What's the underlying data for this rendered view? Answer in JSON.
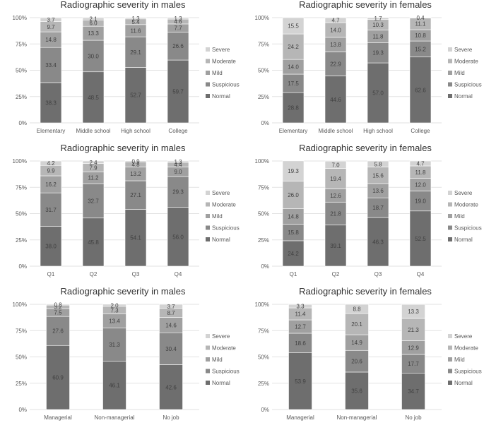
{
  "legend_labels": [
    "Severe",
    "Moderate",
    "Mild",
    "Suspicious",
    "Normal"
  ],
  "colors": {
    "Normal": "#6e6e6e",
    "Suspicious": "#898989",
    "Mild": "#a0a0a0",
    "Moderate": "#b6b6b6",
    "Severe": "#d3d3d3",
    "gridline": "#e2e2e2",
    "axis_text": "#595959",
    "title_text": "#333333",
    "value_text": "#404040"
  },
  "chart_data": [
    {
      "type": "bar",
      "stacked": true,
      "title": "Radiographic severity in males",
      "categories": [
        "Elementary",
        "Middle school",
        "High school",
        "College"
      ],
      "y_ticks": [
        "0%",
        "25%",
        "50%",
        "75%",
        "100%"
      ],
      "ylim": [
        0,
        100
      ],
      "series": [
        {
          "name": "Normal",
          "values": [
            38.3,
            48.5,
            52.7,
            59.7
          ]
        },
        {
          "name": "Suspicious",
          "values": [
            33.4,
            30.0,
            29.1,
            26.6
          ]
        },
        {
          "name": "Mild",
          "values": [
            14.8,
            13.3,
            11.6,
            7.7
          ]
        },
        {
          "name": "Moderate",
          "values": [
            9.7,
            6.0,
            5.4,
            4.6
          ]
        },
        {
          "name": "Severe",
          "values": [
            3.7,
            2.1,
            1.3,
            1.3
          ]
        }
      ],
      "value_labels": [
        [
          "38.3",
          "33.4",
          "14.8",
          "9.7",
          "3.7"
        ],
        [
          "48.5",
          "30.0",
          "13.3",
          "6.0",
          "2.1"
        ],
        [
          "52.7",
          "29.1",
          "11.6",
          "5.4",
          "1.3"
        ],
        [
          "59.7",
          "26.6",
          "7.7",
          "4.6",
          "1.3"
        ]
      ]
    },
    {
      "type": "bar",
      "stacked": true,
      "title": "Radiographic severity in females",
      "categories": [
        "Elementary",
        "Middle school",
        "High school",
        "College"
      ],
      "y_ticks": [
        "0%",
        "25%",
        "50%",
        "75%",
        "100%"
      ],
      "ylim": [
        0,
        100
      ],
      "series": [
        {
          "name": "Normal",
          "values": [
            28.8,
            44.6,
            57.0,
            62.6
          ]
        },
        {
          "name": "Suspicious",
          "values": [
            17.5,
            22.9,
            19.3,
            15.2
          ]
        },
        {
          "name": "Mild",
          "values": [
            14.0,
            13.8,
            11.8,
            10.8
          ]
        },
        {
          "name": "Moderate",
          "values": [
            24.2,
            14.0,
            10.3,
            11.1
          ]
        },
        {
          "name": "Severe",
          "values": [
            15.5,
            4.7,
            1.7,
            0.4
          ]
        }
      ],
      "value_labels": [
        [
          "28.8",
          "17.5",
          "14.0",
          "24.2",
          "15.5"
        ],
        [
          "44.6",
          "22.9",
          "13.8",
          "14.0",
          "4.7"
        ],
        [
          "57.0",
          "19.3",
          "11.8",
          "10.3",
          "1.7"
        ],
        [
          "62.6",
          "15.2",
          "10.8",
          "11.1",
          "0.4"
        ]
      ]
    },
    {
      "type": "bar",
      "stacked": true,
      "title": "Radiographic severity in males",
      "categories": [
        "Q1",
        "Q2",
        "Q3",
        "Q4"
      ],
      "y_ticks": [
        "0%",
        "25%",
        "50%",
        "75%",
        "100%"
      ],
      "ylim": [
        0,
        100
      ],
      "series": [
        {
          "name": "Normal",
          "values": [
            38.0,
            45.8,
            54.1,
            56.0
          ]
        },
        {
          "name": "Suspicious",
          "values": [
            31.7,
            32.7,
            27.1,
            29.3
          ]
        },
        {
          "name": "Mild",
          "values": [
            16.2,
            11.2,
            13.2,
            9.0
          ]
        },
        {
          "name": "Moderate",
          "values": [
            9.9,
            7.9,
            4.8,
            4.4
          ]
        },
        {
          "name": "Severe",
          "values": [
            4.2,
            2.4,
            0.9,
            1.3
          ]
        }
      ],
      "value_labels": [
        [
          "38.0",
          "31.7",
          "16.2",
          "9.9",
          "4.2"
        ],
        [
          "45.8",
          "32.7",
          "11.2",
          "7.9",
          "2.4"
        ],
        [
          "54.1",
          "27.1",
          "13.2",
          "4.8",
          "0.9"
        ],
        [
          "56.0",
          "29.3",
          "9.0",
          "4.4",
          "1.3"
        ]
      ]
    },
    {
      "type": "bar",
      "stacked": true,
      "title": "Radiographic severity in females",
      "categories": [
        "Q1",
        "Q2",
        "Q3",
        "Q4"
      ],
      "y_ticks": [
        "0%",
        "25%",
        "50%",
        "75%",
        "100%"
      ],
      "ylim": [
        0,
        100
      ],
      "series": [
        {
          "name": "Normal",
          "values": [
            24.2,
            39.1,
            46.3,
            52.5
          ]
        },
        {
          "name": "Suspicious",
          "values": [
            15.8,
            21.8,
            18.7,
            19.0
          ]
        },
        {
          "name": "Mild",
          "values": [
            14.8,
            12.6,
            13.6,
            12.0
          ]
        },
        {
          "name": "Moderate",
          "values": [
            26.0,
            19.4,
            15.6,
            11.8
          ]
        },
        {
          "name": "Severe",
          "values": [
            19.3,
            7.0,
            5.8,
            4.7
          ]
        }
      ],
      "value_labels": [
        [
          "24.2",
          "15.8",
          "14.8",
          "26.0",
          "19.3"
        ],
        [
          "39.1",
          "21.8",
          "12.6",
          "19.4",
          "7.0"
        ],
        [
          "46.3",
          "18.7",
          "13.6",
          "15.6",
          "5.8"
        ],
        [
          "52.5",
          "19.0",
          "12.0",
          "11.8",
          "4.7"
        ]
      ]
    },
    {
      "type": "bar",
      "stacked": true,
      "title": "Radiographic severity in males",
      "categories": [
        "Managerial",
        "Non-managerial",
        "No job"
      ],
      "y_ticks": [
        "0%",
        "25%",
        "50%",
        "75%",
        "100%"
      ],
      "ylim": [
        0,
        100
      ],
      "series": [
        {
          "name": "Normal",
          "values": [
            60.9,
            46.1,
            42.6
          ]
        },
        {
          "name": "Suspicious",
          "values": [
            27.6,
            31.3,
            30.4
          ]
        },
        {
          "name": "Mild",
          "values": [
            7.5,
            13.4,
            14.6
          ]
        },
        {
          "name": "Moderate",
          "values": [
            3.2,
            7.3,
            8.7
          ]
        },
        {
          "name": "Severe",
          "values": [
            0.8,
            2.0,
            3.7
          ]
        }
      ],
      "value_labels": [
        [
          "60.9",
          "27.6",
          "7.5",
          "3.2",
          "0.8"
        ],
        [
          "46.1",
          "31.3",
          "13.4",
          "7.3",
          "2.0"
        ],
        [
          "42.6",
          "30.4",
          "14.6",
          "8.7",
          "3.7"
        ]
      ]
    },
    {
      "type": "bar",
      "stacked": true,
      "title": "Radiographic severity in females",
      "categories": [
        "Managerial",
        "Non-managerial",
        "No job"
      ],
      "y_ticks": [
        "0%",
        "25%",
        "50%",
        "75%",
        "100%"
      ],
      "ylim": [
        0,
        100
      ],
      "series": [
        {
          "name": "Normal",
          "values": [
            53.9,
            35.6,
            34.7
          ]
        },
        {
          "name": "Suspicious",
          "values": [
            18.6,
            20.6,
            17.7
          ]
        },
        {
          "name": "Mild",
          "values": [
            12.7,
            14.9,
            12.9
          ]
        },
        {
          "name": "Moderate",
          "values": [
            11.4,
            20.1,
            21.3
          ]
        },
        {
          "name": "Severe",
          "values": [
            3.3,
            8.8,
            13.3
          ]
        }
      ],
      "value_labels": [
        [
          "53.9",
          "18.6",
          "12.7",
          "11.4",
          "3.3"
        ],
        [
          "35.6",
          "20.6",
          "14.9",
          "20.1",
          "8.8"
        ],
        [
          "34.7",
          "17.7",
          "12.9",
          "21.3",
          "13.3"
        ]
      ]
    }
  ]
}
